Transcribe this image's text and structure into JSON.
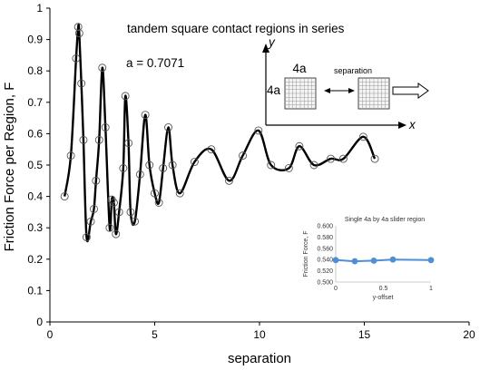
{
  "chart_data": [
    {
      "type": "line",
      "annotation_title": "tandem square contact regions in series",
      "parameter_label": "a = 0.7071",
      "xlabel": "separation",
      "ylabel": "Friction Force per Region, F",
      "xlim": [
        0,
        20
      ],
      "ylim": [
        0,
        1
      ],
      "x_ticks": [
        "0",
        "5",
        "10",
        "15",
        "20"
      ],
      "y_ticks": [
        "0",
        "0.1",
        "0.2",
        "0.3",
        "0.4",
        "0.5",
        "0.6",
        "0.7",
        "0.8",
        "0.9",
        "1"
      ],
      "markers": "open circles",
      "line": "black smooth curve",
      "points": [
        [
          0.7,
          0.4
        ],
        [
          1.0,
          0.53
        ],
        [
          1.25,
          0.84
        ],
        [
          1.35,
          0.94
        ],
        [
          1.4,
          0.92
        ],
        [
          1.5,
          0.76
        ],
        [
          1.6,
          0.58
        ],
        [
          1.75,
          0.27
        ],
        [
          1.95,
          0.32
        ],
        [
          2.1,
          0.36
        ],
        [
          2.2,
          0.45
        ],
        [
          2.35,
          0.58
        ],
        [
          2.5,
          0.81
        ],
        [
          2.65,
          0.62
        ],
        [
          2.85,
          0.3
        ],
        [
          2.95,
          0.39
        ],
        [
          3.05,
          0.38
        ],
        [
          3.15,
          0.28
        ],
        [
          3.3,
          0.35
        ],
        [
          3.5,
          0.49
        ],
        [
          3.6,
          0.72
        ],
        [
          3.75,
          0.57
        ],
        [
          3.85,
          0.35
        ],
        [
          4.05,
          0.32
        ],
        [
          4.3,
          0.47
        ],
        [
          4.55,
          0.66
        ],
        [
          4.75,
          0.5
        ],
        [
          5.0,
          0.41
        ],
        [
          5.2,
          0.38
        ],
        [
          5.4,
          0.49
        ],
        [
          5.65,
          0.62
        ],
        [
          5.85,
          0.5
        ],
        [
          6.2,
          0.41
        ],
        [
          6.9,
          0.51
        ],
        [
          7.7,
          0.55
        ],
        [
          8.55,
          0.45
        ],
        [
          9.2,
          0.53
        ],
        [
          9.95,
          0.61
        ],
        [
          10.55,
          0.5
        ],
        [
          11.4,
          0.49
        ],
        [
          11.9,
          0.56
        ],
        [
          12.6,
          0.5
        ],
        [
          13.4,
          0.52
        ],
        [
          14.0,
          0.52
        ],
        [
          14.95,
          0.59
        ],
        [
          15.5,
          0.52
        ]
      ]
    },
    {
      "type": "line",
      "title": "Single 4a by 4a slider region",
      "xlabel": "y-offset",
      "ylabel": "Friction Force, F",
      "xlim": [
        0,
        1
      ],
      "ylim": [
        0.5,
        0.6
      ],
      "x_ticks": [
        "0",
        "0.5",
        "1"
      ],
      "y_ticks": [
        "0.500",
        "0.520",
        "0.540",
        "0.560",
        "0.580",
        "0.600"
      ],
      "x": [
        0,
        0.2,
        0.4,
        0.6,
        1.0
      ],
      "values": [
        0.539,
        0.537,
        0.538,
        0.54,
        0.539
      ],
      "color": "#4f8fd3"
    }
  ],
  "diagram": {
    "y_axis_label": "y",
    "x_axis_label": "x",
    "block_width_label": "4a",
    "block_height_label": "4a",
    "separation_label": "separation"
  }
}
